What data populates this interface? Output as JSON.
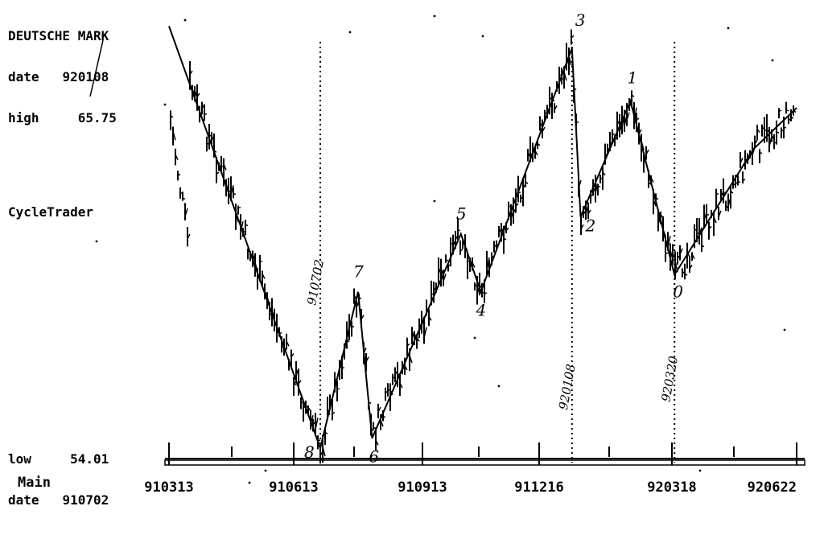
{
  "header": {
    "title": "DEUTSCHE MARK",
    "date_label": "date",
    "date_value": "920108",
    "high_label": "high",
    "high_value": "65.75"
  },
  "indicator_label": "CycleTrader",
  "footer": {
    "low_label": "low",
    "low_value": "54.01",
    "date_label": "date",
    "date_value": "910702"
  },
  "mode_label": "Main",
  "chart_data": {
    "type": "bar",
    "title": "DEUTSCHE MARK",
    "x_tick_labels": [
      "910313",
      "910613",
      "910913",
      "911216",
      "920318",
      "920622"
    ],
    "ylim": [
      54.01,
      65.75
    ],
    "vertical_markers": [
      {
        "date": "910702",
        "label": "910702"
      },
      {
        "date": "920108",
        "label": "920108"
      },
      {
        "date": "920320",
        "label": "920320"
      }
    ],
    "wave_points": [
      {
        "label": "",
        "date": "910313",
        "value": 66.4
      },
      {
        "label": "8",
        "date": "910702",
        "value": 54.01
      },
      {
        "label": "7",
        "date": "910729",
        "value": 58.6
      },
      {
        "label": "6",
        "date": "910808",
        "value": 54.3
      },
      {
        "label": "5",
        "date": "911014",
        "value": 60.3
      },
      {
        "label": "4",
        "date": "911030",
        "value": 58.6
      },
      {
        "label": "3",
        "date": "920108",
        "value": 65.75
      },
      {
        "label": "2",
        "date": "920114",
        "value": 60.8
      },
      {
        "label": "1",
        "date": "920218",
        "value": 64.2
      },
      {
        "label": "0",
        "date": "920320",
        "value": 59.1
      },
      {
        "label": "",
        "date": "920520",
        "value": 62.8
      },
      {
        "label": "",
        "date": "920622",
        "value": 64.0
      }
    ]
  },
  "colors": {
    "background": "#ffffff",
    "ink": "#000000"
  }
}
